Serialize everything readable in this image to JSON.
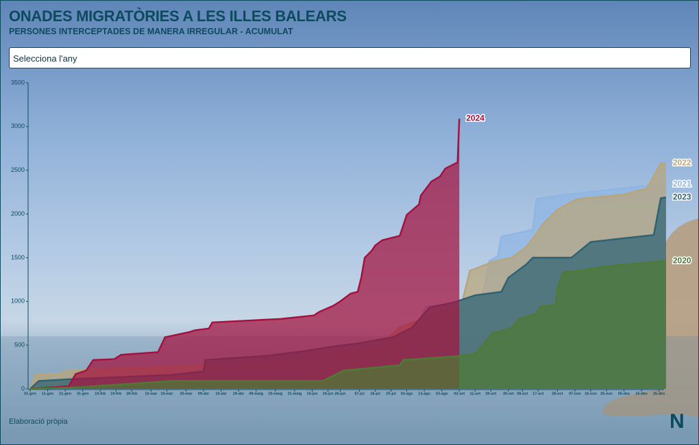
{
  "header": {
    "title": "ONADES MIGRATÒRIES A LES ILLES BALEARS",
    "subtitle": "PERSONES INTERCEPTADES DE MANERA IRREGULAR - ACUMULAT"
  },
  "selector": {
    "placeholder": "Selecciona l'any"
  },
  "footer": {
    "source": "Elaboració pròpia",
    "logo": "N"
  },
  "chart_data": {
    "type": "area",
    "xlim": [
      1,
      366
    ],
    "ylim": [
      0,
      3500
    ],
    "yticks": [
      0,
      500,
      1000,
      1500,
      2000,
      2500,
      3000,
      3500
    ],
    "xticks": [
      {
        "value": 1,
        "label": "01-gen"
      },
      {
        "value": 11,
        "label": "11-gen"
      },
      {
        "value": 21,
        "label": "21-gen"
      },
      {
        "value": 31,
        "label": "31-gen"
      },
      {
        "value": 41,
        "label": "10-feb"
      },
      {
        "value": 50,
        "label": "19-feb"
      },
      {
        "value": 59,
        "label": "28-feb"
      },
      {
        "value": 70,
        "label": "10-mar"
      },
      {
        "value": 79,
        "label": "19-mar"
      },
      {
        "value": 90,
        "label": "30-mar"
      },
      {
        "value": 100,
        "label": "09-abr"
      },
      {
        "value": 110,
        "label": "19-abr"
      },
      {
        "value": 120,
        "label": "29-abr"
      },
      {
        "value": 130,
        "label": "09-maig"
      },
      {
        "value": 141,
        "label": "20-maig"
      },
      {
        "value": 152,
        "label": "31-maig"
      },
      {
        "value": 162,
        "label": "10-jun"
      },
      {
        "value": 171,
        "label": "19-jun"
      },
      {
        "value": 178,
        "label": "26-jun"
      },
      {
        "value": 189,
        "label": "07-jul"
      },
      {
        "value": 198,
        "label": "16-jul"
      },
      {
        "value": 207,
        "label": "25-jul"
      },
      {
        "value": 216,
        "label": "03-ago"
      },
      {
        "value": 226,
        "label": "13-ago"
      },
      {
        "value": 236,
        "label": "23-ago"
      },
      {
        "value": 246,
        "label": "02-set"
      },
      {
        "value": 255,
        "label": "11-set"
      },
      {
        "value": 264,
        "label": "20-set"
      },
      {
        "value": 274,
        "label": "30-set"
      },
      {
        "value": 282,
        "label": "08-oct"
      },
      {
        "value": 291,
        "label": "17-oct"
      },
      {
        "value": 302,
        "label": "28-oct"
      },
      {
        "value": 312,
        "label": "07-nov"
      },
      {
        "value": 321,
        "label": "16-nov"
      },
      {
        "value": 330,
        "label": "25-nov"
      },
      {
        "value": 340,
        "label": "05-des"
      },
      {
        "value": 350,
        "label": "15-des"
      },
      {
        "value": 360,
        "label": "25-des"
      }
    ],
    "series": [
      {
        "name": "2021",
        "color": "#8fb6e3",
        "x": [
          1,
          60,
          133,
          149,
          168,
          184,
          196,
          204,
          212,
          227,
          243,
          251,
          259,
          261,
          263,
          268,
          270,
          288,
          290,
          306,
          361,
          364
        ],
        "values": [
          0,
          30,
          60,
          130,
          170,
          200,
          230,
          270,
          310,
          940,
          980,
          1020,
          1060,
          1230,
          1460,
          1520,
          1740,
          1820,
          2170,
          2220,
          2340,
          2340
        ]
      },
      {
        "name": "2022",
        "color": "#b9a57a",
        "x": [
          1,
          4,
          17,
          23,
          41,
          102,
          133,
          157,
          168,
          200,
          212,
          235,
          247,
          252,
          261,
          266,
          276,
          284,
          288,
          294,
          302,
          313,
          339,
          353,
          361,
          364
        ],
        "values": [
          0,
          160,
          170,
          210,
          230,
          270,
          290,
          350,
          410,
          490,
          700,
          880,
          940,
          1350,
          1420,
          1460,
          1500,
          1620,
          1720,
          1890,
          2050,
          2170,
          2220,
          2290,
          2580,
          2580
        ]
      },
      {
        "name": "2023",
        "color": "#2f6274",
        "x": [
          1,
          6,
          23,
          82,
          100,
          101,
          137,
          157,
          176,
          188,
          208,
          219,
          229,
          243,
          255,
          270,
          274,
          284,
          288,
          310,
          321,
          357,
          361,
          364
        ],
        "values": [
          0,
          90,
          110,
          160,
          200,
          330,
          380,
          430,
          490,
          520,
          590,
          700,
          930,
          990,
          1070,
          1110,
          1270,
          1420,
          1500,
          1500,
          1680,
          1760,
          2180,
          2190
        ]
      },
      {
        "name": "2024",
        "color": "#a3123f",
        "x": [
          1,
          8,
          23,
          27,
          33,
          37,
          49,
          53,
          74,
          78,
          92,
          95,
          103,
          105,
          144,
          163,
          166,
          174,
          178,
          184,
          188,
          190,
          192,
          196,
          198,
          202,
          212,
          216,
          223,
          224,
          230,
          235,
          238,
          245,
          246
        ],
        "values": [
          0,
          10,
          30,
          170,
          210,
          330,
          340,
          390,
          420,
          590,
          650,
          670,
          690,
          760,
          800,
          840,
          880,
          950,
          1000,
          1090,
          1110,
          1270,
          1500,
          1580,
          1640,
          1700,
          1750,
          1990,
          2110,
          2210,
          2370,
          2430,
          2520,
          2590,
          3090
        ]
      },
      {
        "name": "2020",
        "color": "#4f7a36",
        "x": [
          1,
          30,
          82,
          168,
          176,
          180,
          212,
          214,
          243,
          255,
          259,
          265,
          272,
          276,
          280,
          290,
          292,
          301,
          302,
          305,
          317,
          329,
          351,
          361,
          364
        ],
        "values": [
          0,
          20,
          90,
          90,
          170,
          210,
          270,
          330,
          370,
          400,
          490,
          640,
          670,
          700,
          800,
          860,
          940,
          960,
          1150,
          1330,
          1360,
          1400,
          1440,
          1460,
          1460
        ]
      }
    ]
  }
}
